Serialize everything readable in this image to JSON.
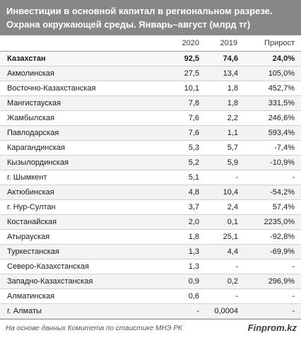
{
  "title": {
    "line1": "Инвестиции в основной капитал в региональном разрезе.",
    "line2": "Охрана окружающей среды. Январь–август  (млрд тг)"
  },
  "columns": {
    "c2": "2020",
    "c3": "2019",
    "c4": "Прирост"
  },
  "rows": [
    {
      "name": "Казахстан",
      "v2020": "92,5",
      "v2019": "74,6",
      "growth": "24,0%"
    },
    {
      "name": "Акмолинская",
      "v2020": "27,5",
      "v2019": "13,4",
      "growth": "105,0%"
    },
    {
      "name": "Восточно-Казахстанская",
      "v2020": "10,1",
      "v2019": "1,8",
      "growth": "452,7%"
    },
    {
      "name": "Мангистауская",
      "v2020": "7,8",
      "v2019": "1,8",
      "growth": "331,5%"
    },
    {
      "name": "Жамбылская",
      "v2020": "7,6",
      "v2019": "2,2",
      "growth": "246,6%"
    },
    {
      "name": "Павлодарская",
      "v2020": "7,6",
      "v2019": "1,1",
      "growth": "593,4%"
    },
    {
      "name": "Карагандинская",
      "v2020": "5,3",
      "v2019": "5,7",
      "growth": "-7,4%"
    },
    {
      "name": "Кызылординская",
      "v2020": "5,2",
      "v2019": "5,9",
      "growth": "-10,9%"
    },
    {
      "name": "г. Шымкент",
      "v2020": "5,1",
      "v2019": "-",
      "growth": "-"
    },
    {
      "name": "Актюбинская",
      "v2020": "4,8",
      "v2019": "10,4",
      "growth": "-54,2%"
    },
    {
      "name": "г. Нур-Султан",
      "v2020": "3,7",
      "v2019": "2,4",
      "growth": "57,4%"
    },
    {
      "name": "Костанайская",
      "v2020": "2,0",
      "v2019": "0,1",
      "growth": "2235,0%"
    },
    {
      "name": "Атырауская",
      "v2020": "1,8",
      "v2019": "25,1",
      "growth": "-92,8%"
    },
    {
      "name": "Туркестанская",
      "v2020": "1,3",
      "v2019": "4,4",
      "growth": "-69,9%"
    },
    {
      "name": "Северо-Казахстанская",
      "v2020": "1,3",
      "v2019": "-",
      "growth": "-"
    },
    {
      "name": "Западно-Казахстанская",
      "v2020": "0,9",
      "v2019": "0,2",
      "growth": "296,9%"
    },
    {
      "name": "Алматинская",
      "v2020": "0,6",
      "v2019": "-",
      "growth": "-"
    },
    {
      "name": "г. Алматы",
      "v2020": "-",
      "v2019": "0,0004",
      "growth": "-"
    }
  ],
  "footer": {
    "source": "На основе данных Комитета по стаистике МНЭ РК",
    "logo": "Finprom.kz"
  }
}
